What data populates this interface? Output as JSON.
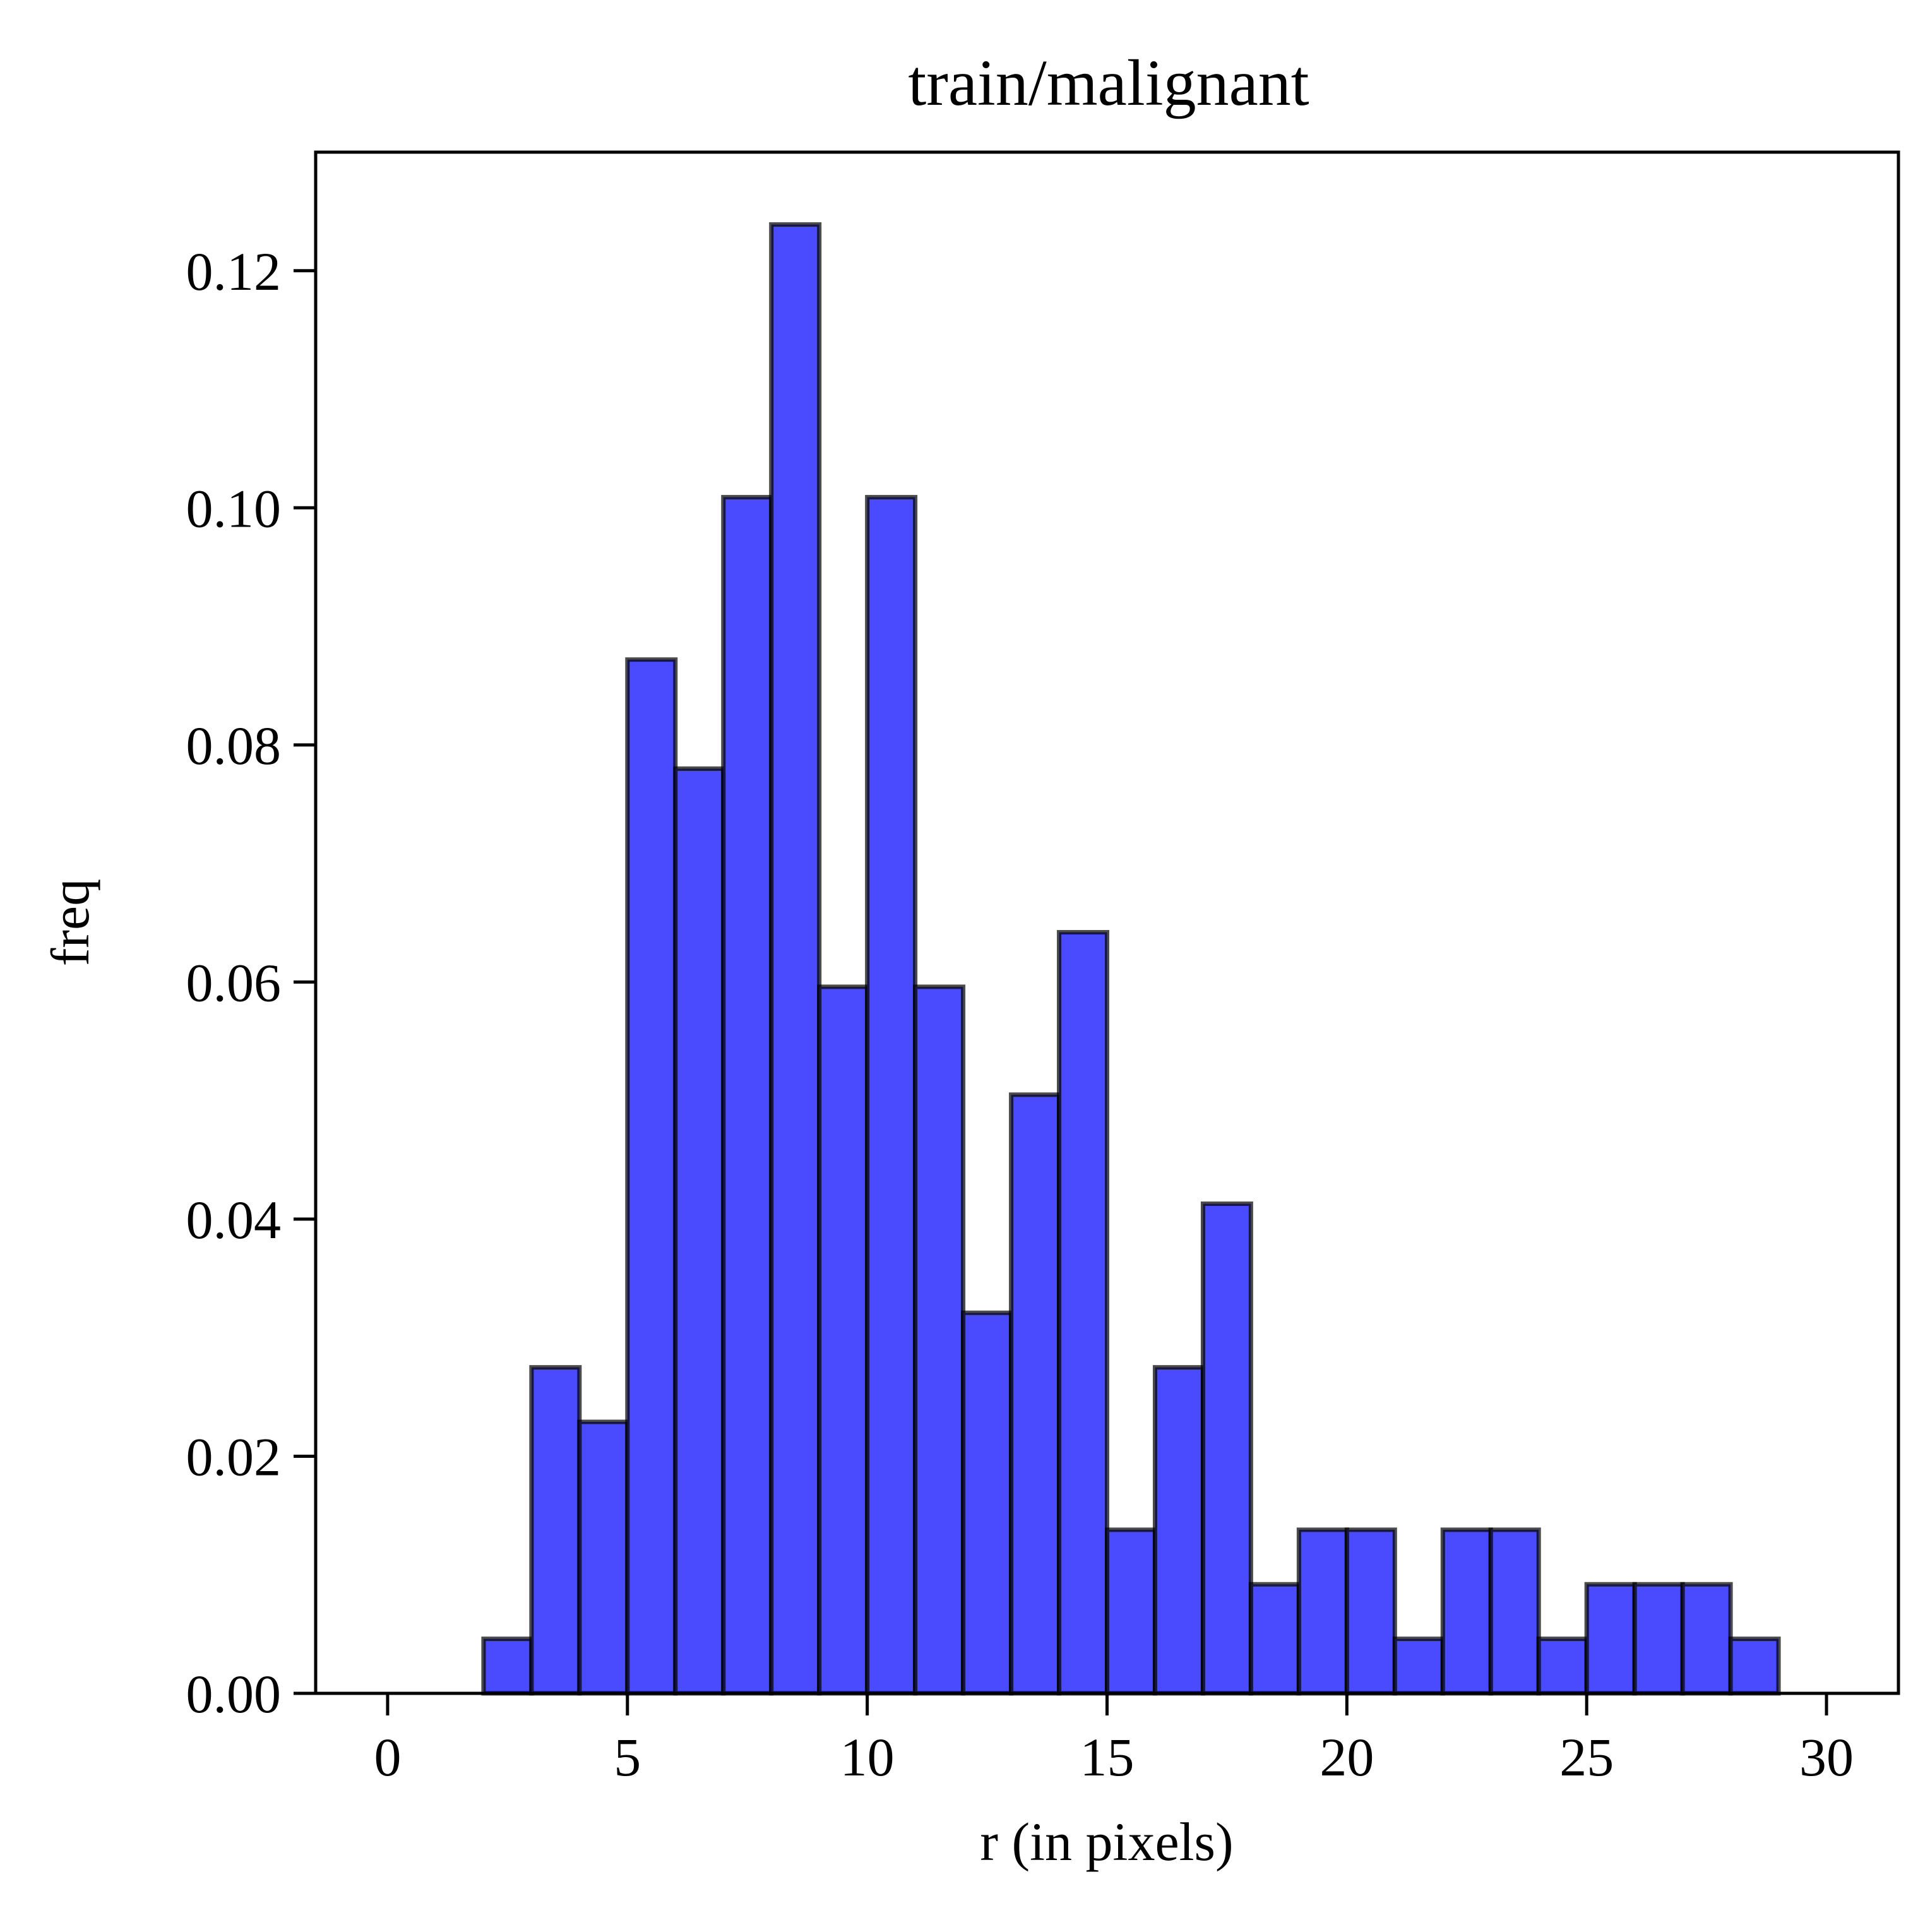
{
  "chart_data": {
    "type": "bar",
    "title": "train/malignant",
    "xlabel": "r (in pixels)",
    "ylabel": "freq",
    "bin_width": 1,
    "bin_start": [
      0,
      1,
      2,
      3,
      4,
      5,
      6,
      7,
      8,
      9,
      10,
      11,
      12,
      13,
      14,
      15,
      16,
      17,
      18,
      19,
      20,
      21,
      22,
      23,
      24,
      25,
      26,
      27,
      28,
      29
    ],
    "values": [
      0,
      0,
      0.0046,
      0.0275,
      0.0229,
      0.0872,
      0.078,
      0.1009,
      0.1239,
      0.0596,
      0.1009,
      0.0596,
      0.0321,
      0.0505,
      0.0642,
      0.0138,
      0.0275,
      0.0413,
      0.0092,
      0.0138,
      0.0138,
      0.0046,
      0.0138,
      0.0138,
      0.0046,
      0.0092,
      0.0092,
      0.0092,
      0.0046,
      0
    ],
    "xlim": [
      -1.5,
      31.5
    ],
    "ylim": [
      0,
      0.13
    ],
    "xticks": [
      0,
      5,
      10,
      15,
      20,
      25,
      30
    ],
    "xtick_labels": [
      "0",
      "5",
      "10",
      "15",
      "20",
      "25",
      "30"
    ],
    "yticks": [
      0,
      0.02,
      0.04,
      0.06,
      0.08,
      0.1,
      0.12
    ],
    "ytick_labels": [
      "0.00",
      "0.02",
      "0.04",
      "0.06",
      "0.08",
      "0.10",
      "0.12"
    ],
    "grid": false,
    "bar_color": "#4a4aff",
    "edge_color": "#000000"
  }
}
